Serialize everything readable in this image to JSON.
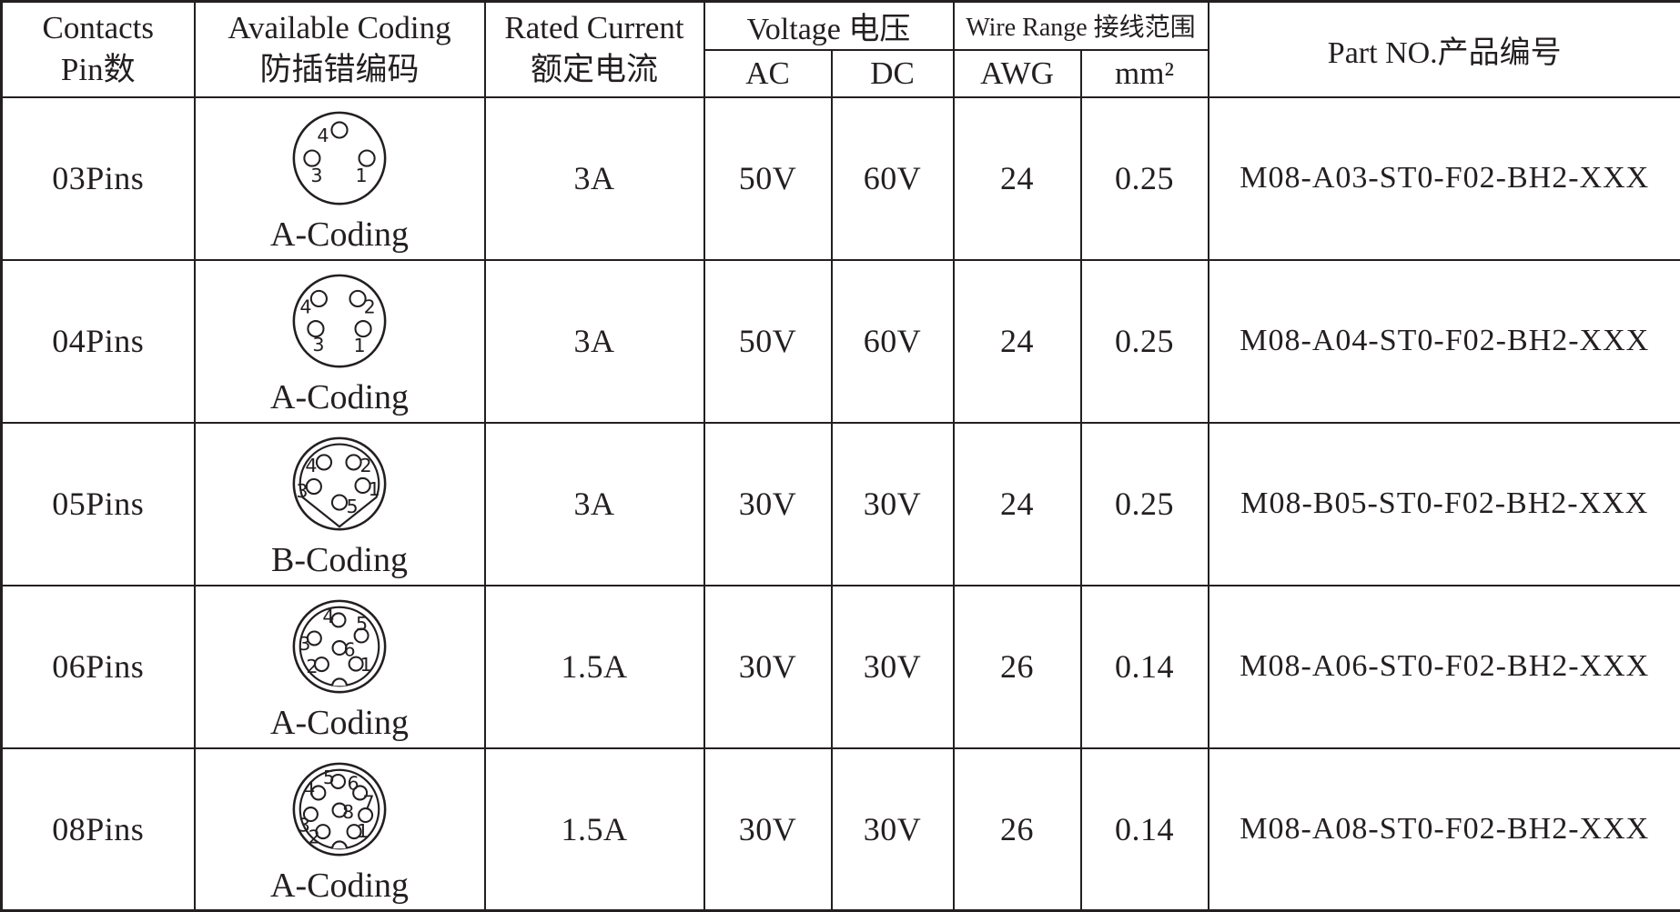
{
  "colors": {
    "line": "#231f20",
    "text": "#231f20",
    "background": "#ffffff"
  },
  "header": {
    "contacts": {
      "en": "Contacts",
      "zh": "Pin数"
    },
    "coding": {
      "en": "Available Coding",
      "zh": "防插错编码"
    },
    "current": {
      "en": "Rated Current",
      "zh": "额定电流"
    },
    "voltage": {
      "label": "Voltage 电压",
      "sub": [
        "AC",
        "DC"
      ]
    },
    "wire": {
      "label": "Wire Range 接线范围",
      "sub": [
        "AWG",
        "mm²"
      ]
    },
    "part": {
      "label": "Part NO.产品编号"
    }
  },
  "table": {
    "rows": [
      {
        "pins": "03Pins",
        "coding": {
          "label": "A-Coding",
          "rings": "single",
          "notch": "none",
          "pin_r": 0.17,
          "pins": [
            {
              "x": 0.0,
              "y": -0.62,
              "l": "4",
              "lx": -0.36,
              "ly": -0.5
            },
            {
              "x": -0.6,
              "y": 0.0,
              "l": "3",
              "lx": -0.5,
              "ly": 0.38
            },
            {
              "x": 0.6,
              "y": 0.0,
              "l": "1",
              "lx": 0.48,
              "ly": 0.38
            }
          ]
        },
        "current": "3A",
        "ac": "50V",
        "dc": "60V",
        "awg": "24",
        "mm2": "0.25",
        "part": "M08-A03-ST0-F02-BH2-XXX"
      },
      {
        "pins": "04Pins",
        "coding": {
          "label": "A-Coding",
          "rings": "single",
          "notch": "none",
          "pin_r": 0.17,
          "pins": [
            {
              "x": -0.45,
              "y": -0.49,
              "l": "4",
              "lx": -0.74,
              "ly": -0.31
            },
            {
              "x": 0.4,
              "y": -0.49,
              "l": "2",
              "lx": 0.66,
              "ly": -0.31
            },
            {
              "x": -0.52,
              "y": 0.17,
              "l": "3",
              "lx": -0.46,
              "ly": 0.52
            },
            {
              "x": 0.52,
              "y": 0.17,
              "l": "1",
              "lx": 0.44,
              "ly": 0.54
            }
          ]
        },
        "current": "3A",
        "ac": "50V",
        "dc": "60V",
        "awg": "24",
        "mm2": "0.25",
        "part": "M08-A04-ST0-F02-BH2-XXX"
      },
      {
        "pins": "05Pins",
        "coding": {
          "label": "B-Coding",
          "rings": "double",
          "notch": "keel",
          "pin_r": 0.16,
          "pins": [
            {
              "x": -0.34,
              "y": -0.47,
              "l": "4",
              "lx": -0.62,
              "ly": -0.4
            },
            {
              "x": 0.31,
              "y": -0.47,
              "l": "2",
              "lx": 0.58,
              "ly": -0.4
            },
            {
              "x": -0.56,
              "y": 0.06,
              "l": "3",
              "lx": -0.82,
              "ly": 0.16
            },
            {
              "x": 0.51,
              "y": 0.04,
              "l": "1",
              "lx": 0.76,
              "ly": 0.12
            },
            {
              "x": 0.0,
              "y": 0.41,
              "l": "5",
              "lx": 0.28,
              "ly": 0.5
            }
          ]
        },
        "current": "3A",
        "ac": "30V",
        "dc": "30V",
        "awg": "24",
        "mm2": "0.25",
        "part": "M08-B05-ST0-F02-BH2-XXX"
      },
      {
        "pins": "06Pins",
        "coding": {
          "label": "A-Coding",
          "rings": "double",
          "notch": "bump",
          "pin_r": 0.15,
          "pins": [
            {
              "x": -0.02,
              "y": -0.58,
              "l": "4",
              "lx": -0.24,
              "ly": -0.66
            },
            {
              "x": 0.48,
              "y": -0.24,
              "l": "5",
              "lx": 0.49,
              "ly": -0.5
            },
            {
              "x": -0.55,
              "y": -0.18,
              "l": "3",
              "lx": -0.76,
              "ly": -0.06
            },
            {
              "x": 0.0,
              "y": 0.03,
              "l": "6",
              "lx": 0.22,
              "ly": 0.07
            },
            {
              "x": -0.39,
              "y": 0.39,
              "l": "2",
              "lx": -0.6,
              "ly": 0.44
            },
            {
              "x": 0.36,
              "y": 0.38,
              "l": "1",
              "lx": 0.58,
              "ly": 0.4
            }
          ]
        },
        "current": "1.5A",
        "ac": "30V",
        "dc": "30V",
        "awg": "26",
        "mm2": "0.14",
        "part": "M08-A06-ST0-F02-BH2-XXX"
      },
      {
        "pins": "08Pins",
        "coding": {
          "label": "A-Coding",
          "rings": "double",
          "notch": "bump",
          "pin_r": 0.15,
          "pins": [
            {
              "x": -0.03,
              "y": -0.61,
              "l": "5",
              "lx": -0.23,
              "ly": -0.7
            },
            {
              "x": 0.45,
              "y": -0.36,
              "l": "6",
              "lx": 0.3,
              "ly": -0.57
            },
            {
              "x": -0.46,
              "y": -0.36,
              "l": "4",
              "lx": -0.66,
              "ly": -0.45
            },
            {
              "x": 0.57,
              "y": 0.13,
              "l": "7",
              "lx": 0.64,
              "ly": -0.15
            },
            {
              "x": 0.0,
              "y": 0.02,
              "l": "8",
              "lx": 0.19,
              "ly": 0.06
            },
            {
              "x": -0.63,
              "y": 0.11,
              "l": "3",
              "lx": -0.77,
              "ly": 0.35
            },
            {
              "x": -0.36,
              "y": 0.49,
              "l": "2",
              "lx": -0.55,
              "ly": 0.61
            },
            {
              "x": 0.32,
              "y": 0.49,
              "l": "1",
              "lx": 0.51,
              "ly": 0.48
            }
          ]
        },
        "current": "1.5A",
        "ac": "30V",
        "dc": "30V",
        "awg": "26",
        "mm2": "0.14",
        "part": "M08-A08-ST0-F02-BH2-XXX"
      }
    ]
  }
}
